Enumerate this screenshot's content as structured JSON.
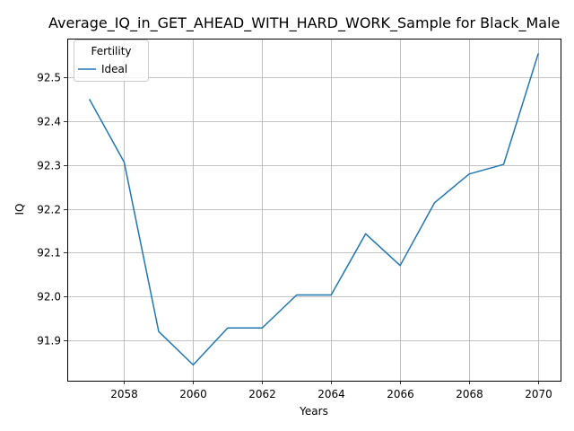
{
  "chart_data": {
    "type": "line",
    "title": "Average_IQ_in_GET_AHEAD_WITH_HARD_WORK_Sample for Black_Male",
    "xlabel": "Years",
    "ylabel": "IQ",
    "xlim": [
      2056.35,
      2070.65
    ],
    "ylim": [
      91.809,
      92.587
    ],
    "x_ticks": [
      2058,
      2060,
      2062,
      2064,
      2066,
      2068,
      2070
    ],
    "y_ticks": [
      91.9,
      92.0,
      92.1,
      92.2,
      92.3,
      92.4,
      92.5
    ],
    "grid": true,
    "legend": {
      "title": "Fertility",
      "placement": "top-left"
    },
    "x": [
      2057,
      2058,
      2059,
      2060,
      2061,
      2062,
      2063,
      2064,
      2065,
      2066,
      2067,
      2068,
      2069,
      2070
    ],
    "series": [
      {
        "name": "Ideal",
        "color": "#1f77b4",
        "values": [
          92.448,
          92.306,
          91.921,
          91.845,
          91.929,
          91.929,
          92.004,
          92.004,
          92.143,
          92.071,
          92.214,
          92.279,
          92.301,
          92.552
        ]
      }
    ]
  }
}
